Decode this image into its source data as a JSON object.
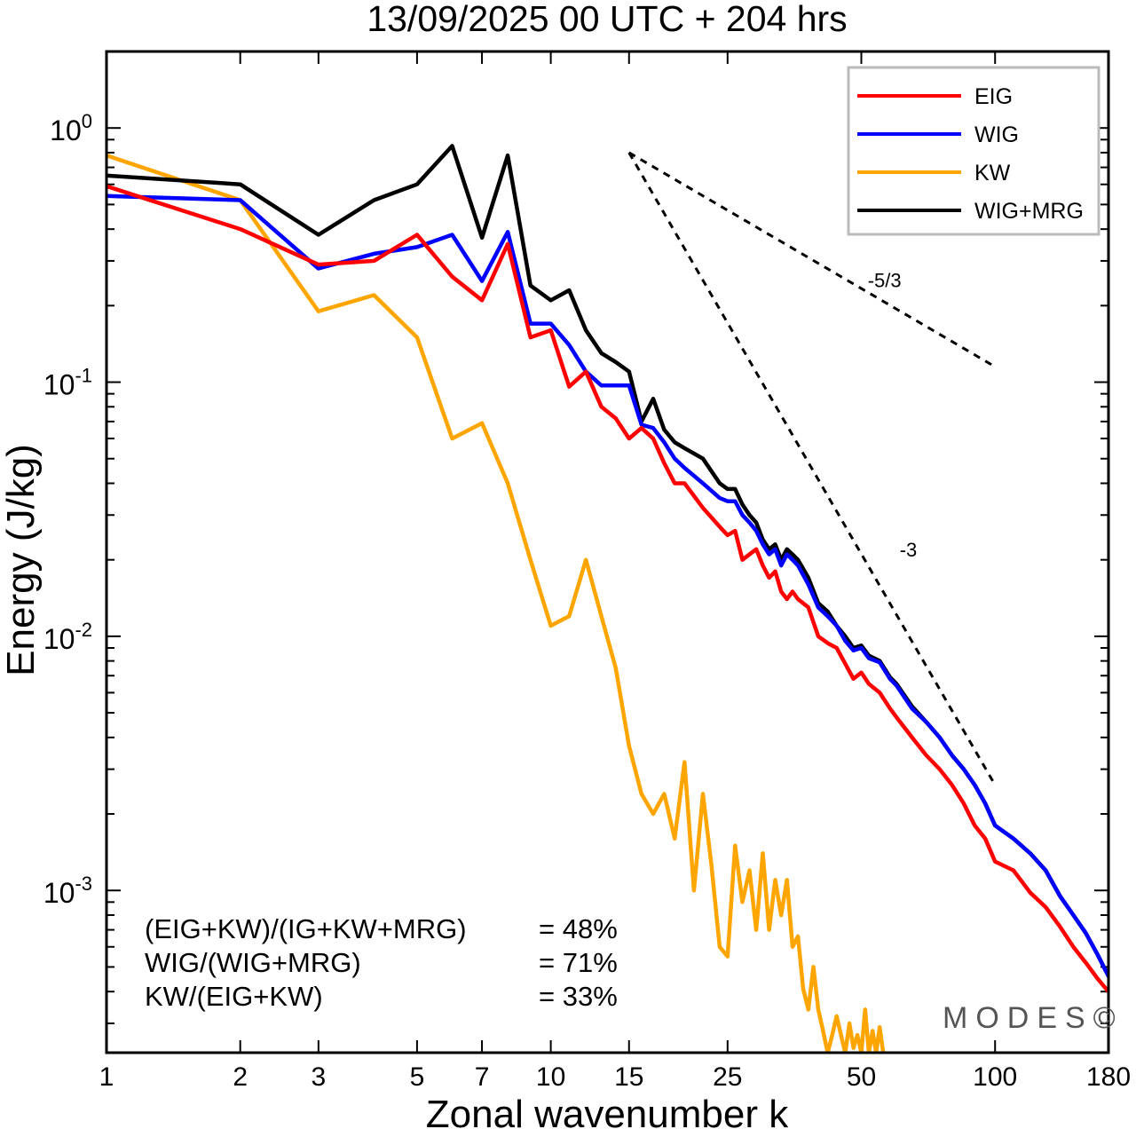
{
  "chart_data": {
    "type": "line",
    "title": "13/09/2025  00 UTC  + 204 hrs",
    "xlabel": "Zonal wavenumber k",
    "ylabel": "Energy (J/kg)",
    "xscale": "log",
    "yscale": "log",
    "xlim": [
      1,
      180
    ],
    "ylim": [
      0.00023,
      2.0
    ],
    "xticks": [
      1,
      2,
      3,
      5,
      7,
      10,
      15,
      25,
      50,
      100,
      180
    ],
    "xtick_labels": [
      "1",
      "2",
      "3",
      "5",
      "7",
      "10",
      "15",
      "25",
      "50",
      "100",
      "180"
    ],
    "yticks": [
      {
        "value": 1.0,
        "base": "10",
        "exp": "0"
      },
      {
        "value": 0.1,
        "base": "10",
        "exp": "-1"
      },
      {
        "value": 0.01,
        "base": "10",
        "exp": "-2"
      },
      {
        "value": 0.001,
        "base": "10",
        "exp": "-3"
      }
    ],
    "legend_position": "top-right",
    "series": [
      {
        "name": "EIG",
        "color": "#ff0000",
        "points": [
          [
            1,
            0.59
          ],
          [
            2,
            0.4
          ],
          [
            3,
            0.29
          ],
          [
            4,
            0.3
          ],
          [
            5,
            0.38
          ],
          [
            6,
            0.26
          ],
          [
            7,
            0.21
          ],
          [
            8,
            0.35
          ],
          [
            9,
            0.15
          ],
          [
            10,
            0.16
          ],
          [
            11,
            0.096
          ],
          [
            12,
            0.11
          ],
          [
            13,
            0.08
          ],
          [
            14,
            0.072
          ],
          [
            15,
            0.06
          ],
          [
            16,
            0.066
          ],
          [
            17,
            0.06
          ],
          [
            18,
            0.048
          ],
          [
            19,
            0.04
          ],
          [
            20,
            0.04
          ],
          [
            22,
            0.032
          ],
          [
            24,
            0.027
          ],
          [
            25,
            0.025
          ],
          [
            26,
            0.026
          ],
          [
            27,
            0.02
          ],
          [
            28,
            0.021
          ],
          [
            29,
            0.022
          ],
          [
            30,
            0.019
          ],
          [
            31,
            0.017
          ],
          [
            32,
            0.018
          ],
          [
            33,
            0.015
          ],
          [
            34,
            0.014
          ],
          [
            35,
            0.015
          ],
          [
            36,
            0.014
          ],
          [
            38,
            0.013
          ],
          [
            40,
            0.01
          ],
          [
            42,
            0.0094
          ],
          [
            44,
            0.009
          ],
          [
            46,
            0.0078
          ],
          [
            48,
            0.0068
          ],
          [
            50,
            0.0072
          ],
          [
            52,
            0.0065
          ],
          [
            55,
            0.006
          ],
          [
            58,
            0.0052
          ],
          [
            60,
            0.0048
          ],
          [
            65,
            0.004
          ],
          [
            70,
            0.0034
          ],
          [
            75,
            0.003
          ],
          [
            80,
            0.0026
          ],
          [
            85,
            0.0022
          ],
          [
            90,
            0.0018
          ],
          [
            95,
            0.0016
          ],
          [
            100,
            0.0013
          ],
          [
            110,
            0.0012
          ],
          [
            120,
            0.00098
          ],
          [
            130,
            0.00086
          ],
          [
            140,
            0.00072
          ],
          [
            150,
            0.0006
          ],
          [
            160,
            0.00052
          ],
          [
            170,
            0.00045
          ],
          [
            180,
            0.0004
          ]
        ]
      },
      {
        "name": "WIG",
        "color": "#0000ff",
        "points": [
          [
            1,
            0.54
          ],
          [
            2,
            0.52
          ],
          [
            3,
            0.28
          ],
          [
            4,
            0.32
          ],
          [
            5,
            0.34
          ],
          [
            6,
            0.38
          ],
          [
            7,
            0.25
          ],
          [
            8,
            0.39
          ],
          [
            9,
            0.17
          ],
          [
            10,
            0.17
          ],
          [
            11,
            0.14
          ],
          [
            12,
            0.11
          ],
          [
            13,
            0.097
          ],
          [
            14,
            0.097
          ],
          [
            15,
            0.097
          ],
          [
            16,
            0.068
          ],
          [
            17,
            0.066
          ],
          [
            18,
            0.058
          ],
          [
            19,
            0.05
          ],
          [
            20,
            0.046
          ],
          [
            22,
            0.04
          ],
          [
            24,
            0.035
          ],
          [
            25,
            0.034
          ],
          [
            26,
            0.034
          ],
          [
            27,
            0.03
          ],
          [
            28,
            0.028
          ],
          [
            29,
            0.026
          ],
          [
            30,
            0.023
          ],
          [
            31,
            0.021
          ],
          [
            32,
            0.022
          ],
          [
            33,
            0.019
          ],
          [
            34,
            0.021
          ],
          [
            35,
            0.02
          ],
          [
            36,
            0.019
          ],
          [
            38,
            0.016
          ],
          [
            40,
            0.013
          ],
          [
            42,
            0.012
          ],
          [
            44,
            0.011
          ],
          [
            46,
            0.0096
          ],
          [
            48,
            0.0088
          ],
          [
            50,
            0.009
          ],
          [
            52,
            0.0082
          ],
          [
            55,
            0.0079
          ],
          [
            58,
            0.0068
          ],
          [
            60,
            0.0064
          ],
          [
            65,
            0.0052
          ],
          [
            70,
            0.0046
          ],
          [
            75,
            0.004
          ],
          [
            80,
            0.0034
          ],
          [
            85,
            0.003
          ],
          [
            90,
            0.0026
          ],
          [
            95,
            0.0022
          ],
          [
            100,
            0.0018
          ],
          [
            110,
            0.0016
          ],
          [
            120,
            0.0014
          ],
          [
            130,
            0.0012
          ],
          [
            140,
            0.00095
          ],
          [
            150,
            0.0008
          ],
          [
            160,
            0.00068
          ],
          [
            170,
            0.00056
          ],
          [
            180,
            0.00046
          ]
        ]
      },
      {
        "name": "KW",
        "color": "#ffa500",
        "points": [
          [
            1,
            0.78
          ],
          [
            2,
            0.52
          ],
          [
            3,
            0.19
          ],
          [
            4,
            0.22
          ],
          [
            5,
            0.15
          ],
          [
            6,
            0.06
          ],
          [
            7,
            0.069
          ],
          [
            8,
            0.04
          ],
          [
            9,
            0.02
          ],
          [
            10,
            0.011
          ],
          [
            11,
            0.012
          ],
          [
            12,
            0.02
          ],
          [
            13,
            0.012
          ],
          [
            14,
            0.0075
          ],
          [
            15,
            0.0037
          ],
          [
            16,
            0.0024
          ],
          [
            17,
            0.002
          ],
          [
            18,
            0.0024
          ],
          [
            19,
            0.0016
          ],
          [
            20,
            0.0032
          ],
          [
            21,
            0.001
          ],
          [
            22,
            0.0024
          ],
          [
            23,
            0.00125
          ],
          [
            24,
            0.0006
          ],
          [
            25,
            0.00055
          ],
          [
            26,
            0.0015
          ],
          [
            27,
            0.0009
          ],
          [
            28,
            0.0012
          ],
          [
            29,
            0.0007
          ],
          [
            30,
            0.0014
          ],
          [
            31,
            0.0007
          ],
          [
            32,
            0.0011
          ],
          [
            33,
            0.0008
          ],
          [
            34,
            0.0011
          ],
          [
            35,
            0.0006
          ],
          [
            36,
            0.00066
          ],
          [
            37,
            0.00041
          ],
          [
            38,
            0.00034
          ],
          [
            39,
            0.0005
          ],
          [
            40,
            0.00034
          ],
          [
            41,
            0.00028
          ],
          [
            42,
            0.00023
          ],
          [
            43,
            0.00027
          ],
          [
            44,
            0.00032
          ],
          [
            45,
            0.00027
          ],
          [
            46,
            0.00023
          ],
          [
            47,
            0.0003
          ],
          [
            48,
            0.00024
          ],
          [
            49,
            0.00027
          ],
          [
            50,
            0.00023
          ],
          [
            51,
            0.00034
          ],
          [
            52,
            0.00023
          ],
          [
            53,
            0.00028
          ],
          [
            54,
            0.00023
          ],
          [
            55,
            0.00029
          ],
          [
            56,
            0.00023
          ]
        ]
      },
      {
        "name": "WIG+MRG",
        "color": "#000000",
        "points": [
          [
            1,
            0.65
          ],
          [
            2,
            0.6
          ],
          [
            3,
            0.38
          ],
          [
            4,
            0.52
          ],
          [
            5,
            0.6
          ],
          [
            6,
            0.85
          ],
          [
            7,
            0.37
          ],
          [
            8,
            0.78
          ],
          [
            9,
            0.24
          ],
          [
            10,
            0.21
          ],
          [
            11,
            0.23
          ],
          [
            12,
            0.16
          ],
          [
            13,
            0.13
          ],
          [
            14,
            0.12
          ],
          [
            15,
            0.11
          ],
          [
            16,
            0.07
          ],
          [
            17,
            0.086
          ],
          [
            18,
            0.065
          ],
          [
            19,
            0.058
          ],
          [
            20,
            0.055
          ],
          [
            22,
            0.05
          ],
          [
            24,
            0.04
          ],
          [
            25,
            0.038
          ],
          [
            26,
            0.038
          ],
          [
            27,
            0.033
          ],
          [
            28,
            0.03
          ],
          [
            29,
            0.028
          ],
          [
            30,
            0.024
          ],
          [
            31,
            0.022
          ],
          [
            32,
            0.023
          ],
          [
            33,
            0.02
          ],
          [
            34,
            0.022
          ],
          [
            35,
            0.021
          ],
          [
            36,
            0.02
          ],
          [
            38,
            0.017
          ],
          [
            40,
            0.0135
          ],
          [
            42,
            0.0125
          ],
          [
            44,
            0.011
          ],
          [
            46,
            0.01
          ],
          [
            48,
            0.009
          ],
          [
            50,
            0.0092
          ],
          [
            52,
            0.0084
          ],
          [
            55,
            0.008
          ],
          [
            58,
            0.0069
          ],
          [
            60,
            0.0065
          ],
          [
            65,
            0.0053
          ],
          [
            70,
            0.0046
          ],
          [
            75,
            0.004
          ],
          [
            80,
            0.0034
          ],
          [
            85,
            0.003
          ],
          [
            90,
            0.0026
          ],
          [
            95,
            0.0022
          ],
          [
            100,
            0.0018
          ],
          [
            110,
            0.0016
          ],
          [
            120,
            0.0014
          ],
          [
            130,
            0.0012
          ],
          [
            140,
            0.00095
          ],
          [
            150,
            0.0008
          ],
          [
            160,
            0.00068
          ],
          [
            170,
            0.00056
          ],
          [
            180,
            0.00046
          ]
        ]
      }
    ],
    "reference_lines": [
      {
        "label": "-5/3",
        "points": [
          [
            15,
            0.8
          ],
          [
            100,
            0.115
          ]
        ]
      },
      {
        "label": "-3",
        "points": [
          [
            15,
            0.8
          ],
          [
            100,
            0.0026
          ]
        ]
      }
    ],
    "annotations": [
      {
        "label": "(EIG+KW)/(IG+KW+MRG)",
        "value": "= 48%"
      },
      {
        "label": "WIG/(WIG+MRG)",
        "value": "= 71%"
      },
      {
        "label": "KW/(EIG+KW)",
        "value": "= 33%"
      }
    ],
    "watermark": "MODES©"
  }
}
